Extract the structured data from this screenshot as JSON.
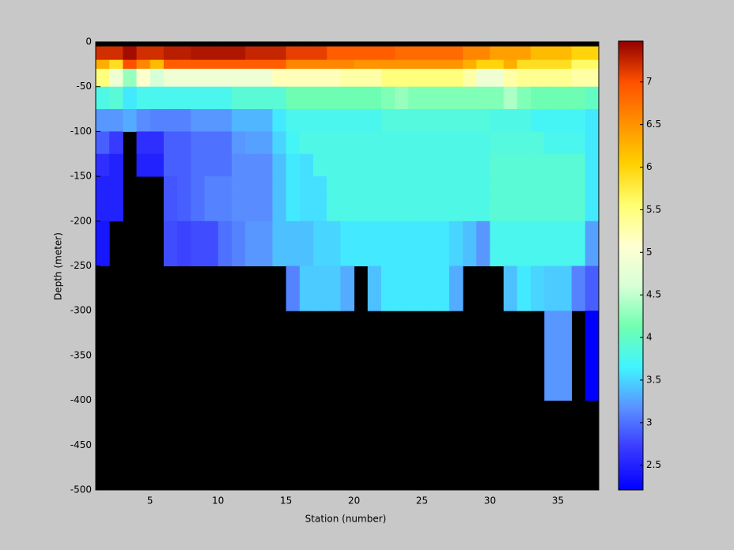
{
  "chart_data": {
    "type": "heatmap",
    "xlabel": "Station (number)",
    "ylabel": "Depth (meter)",
    "x_edges": [
      1,
      2,
      3,
      4,
      5,
      6,
      7,
      8,
      9,
      10,
      11,
      12,
      13,
      14,
      15,
      16,
      17,
      18,
      19,
      20,
      21,
      22,
      23,
      24,
      25,
      26,
      27,
      28,
      29,
      30,
      31,
      32,
      33,
      34,
      35,
      36,
      37,
      38
    ],
    "y_edges": [
      0,
      -5,
      -20,
      -30,
      -50,
      -75,
      -100,
      -125,
      -150,
      -175,
      -200,
      -225,
      -250,
      -300,
      -400,
      -500
    ],
    "xlim": [
      1,
      38
    ],
    "xticks": [
      5,
      10,
      15,
      20,
      25,
      30,
      35
    ],
    "ylim": [
      -500,
      0
    ],
    "yticks": [
      0,
      -50,
      -100,
      -150,
      -200,
      -250,
      -300,
      -350,
      -400,
      -450,
      -500
    ],
    "clim": [
      2.21,
      7.48
    ],
    "cticks": [
      2.5,
      3,
      3.5,
      4,
      4.5,
      5,
      5.5,
      6,
      6.5,
      7
    ],
    "colormap": [
      "#0000ff",
      "#3838ff",
      "#5a90ff",
      "#40f4ff",
      "#70ffb0",
      "#d8ffd8",
      "#ffffd0",
      "#ffff70",
      "#ffd000",
      "#ff9000",
      "#ff5000",
      "#900000"
    ],
    "missing_color": "#000000",
    "values": [
      [
        null,
        null,
        null,
        null,
        null,
        null,
        null,
        null,
        null,
        null,
        null,
        null,
        null,
        null,
        null,
        null,
        null,
        null,
        null,
        null,
        null,
        null,
        null,
        null,
        null,
        null,
        null,
        null,
        null,
        null,
        null,
        null,
        null,
        null,
        null,
        null,
        null
      ],
      [
        7.2,
        7.2,
        7.4,
        7.2,
        7.2,
        7.3,
        7.3,
        7.35,
        7.35,
        7.35,
        7.35,
        7.25,
        7.25,
        7.25,
        7.1,
        7.1,
        7.1,
        6.9,
        6.9,
        6.9,
        6.9,
        6.9,
        6.8,
        6.8,
        6.8,
        6.8,
        6.8,
        6.6,
        6.6,
        6.4,
        6.4,
        6.4,
        6.2,
        6.2,
        6.2,
        6.0,
        6.0
      ],
      [
        6.3,
        5.9,
        7.0,
        6.6,
        6.2,
        6.9,
        6.9,
        6.9,
        6.9,
        6.9,
        6.9,
        6.9,
        6.9,
        6.9,
        6.6,
        6.6,
        6.6,
        6.6,
        6.6,
        6.5,
        6.5,
        6.5,
        6.5,
        6.5,
        6.5,
        6.5,
        6.5,
        6.3,
        6.0,
        6.0,
        6.3,
        5.9,
        5.9,
        5.9,
        5.9,
        5.6,
        5.6
      ],
      [
        5.5,
        4.9,
        4.3,
        5.1,
        4.6,
        4.9,
        4.9,
        4.9,
        4.9,
        4.9,
        4.9,
        4.9,
        4.9,
        5.2,
        5.2,
        5.2,
        5.2,
        5.2,
        5.3,
        5.3,
        5.3,
        5.5,
        5.5,
        5.5,
        5.5,
        5.5,
        5.5,
        5.3,
        4.9,
        4.9,
        5.3,
        5.4,
        5.4,
        5.4,
        5.4,
        5.3,
        5.3
      ],
      [
        3.8,
        3.9,
        3.6,
        3.75,
        3.75,
        3.75,
        3.75,
        3.75,
        3.75,
        3.75,
        3.9,
        3.9,
        3.9,
        3.9,
        4.1,
        4.1,
        4.1,
        4.1,
        4.1,
        4.1,
        4.1,
        4.2,
        4.3,
        4.2,
        4.2,
        4.2,
        4.2,
        4.2,
        4.2,
        4.2,
        4.4,
        4.2,
        4.1,
        4.1,
        4.1,
        4.1,
        4.0
      ],
      [
        3.2,
        3.2,
        3.3,
        3.15,
        3.1,
        3.1,
        3.1,
        3.2,
        3.2,
        3.2,
        3.35,
        3.35,
        3.35,
        3.6,
        3.75,
        3.75,
        3.75,
        3.75,
        3.75,
        3.75,
        3.75,
        3.85,
        3.85,
        3.85,
        3.85,
        3.85,
        3.85,
        3.85,
        3.85,
        3.8,
        3.8,
        3.8,
        3.7,
        3.7,
        3.7,
        3.7,
        3.6
      ],
      [
        2.9,
        2.7,
        null,
        2.6,
        2.6,
        2.9,
        2.9,
        3.0,
        3.0,
        3.0,
        3.2,
        3.25,
        3.25,
        3.5,
        3.7,
        3.8,
        3.8,
        3.8,
        3.8,
        3.8,
        3.8,
        3.8,
        3.8,
        3.8,
        3.8,
        3.8,
        3.8,
        3.8,
        3.8,
        3.85,
        3.85,
        3.85,
        3.85,
        3.75,
        3.75,
        3.75,
        3.6
      ],
      [
        2.6,
        2.5,
        null,
        2.5,
        2.5,
        2.9,
        2.9,
        3.0,
        3.0,
        3.0,
        3.15,
        3.15,
        3.15,
        3.4,
        3.6,
        3.55,
        3.8,
        3.8,
        3.8,
        3.8,
        3.8,
        3.8,
        3.8,
        3.8,
        3.8,
        3.8,
        3.8,
        3.8,
        3.8,
        3.9,
        3.9,
        3.9,
        3.9,
        3.9,
        3.9,
        3.9,
        3.6
      ],
      [
        2.5,
        2.5,
        null,
        null,
        null,
        2.85,
        2.9,
        3.0,
        3.1,
        3.1,
        3.15,
        3.15,
        3.15,
        3.4,
        3.6,
        3.55,
        3.55,
        3.8,
        3.8,
        3.8,
        3.8,
        3.8,
        3.8,
        3.8,
        3.8,
        3.8,
        3.8,
        3.8,
        3.8,
        3.9,
        3.9,
        3.9,
        3.9,
        3.9,
        3.9,
        3.9,
        3.6
      ],
      [
        2.5,
        2.5,
        null,
        null,
        null,
        2.85,
        2.9,
        3.0,
        3.1,
        3.1,
        3.15,
        3.15,
        3.15,
        3.4,
        3.6,
        3.55,
        3.55,
        3.8,
        3.8,
        3.8,
        3.8,
        3.8,
        3.8,
        3.8,
        3.8,
        3.8,
        3.8,
        3.8,
        3.8,
        3.9,
        3.9,
        3.9,
        3.9,
        3.9,
        3.9,
        3.9,
        3.6
      ],
      [
        2.4,
        null,
        null,
        null,
        null,
        2.8,
        2.75,
        2.8,
        2.8,
        3.0,
        3.1,
        3.2,
        3.2,
        3.4,
        3.4,
        3.4,
        3.5,
        3.5,
        3.6,
        3.6,
        3.6,
        3.6,
        3.6,
        3.6,
        3.6,
        3.6,
        3.5,
        3.4,
        3.2,
        3.75,
        3.75,
        3.75,
        3.75,
        3.75,
        3.75,
        3.75,
        3.25
      ],
      [
        2.4,
        null,
        null,
        null,
        null,
        2.8,
        2.75,
        2.8,
        2.8,
        3.0,
        3.1,
        3.2,
        3.2,
        3.4,
        3.4,
        3.4,
        3.5,
        3.5,
        3.6,
        3.6,
        3.6,
        3.6,
        3.6,
        3.6,
        3.6,
        3.6,
        3.5,
        3.4,
        3.2,
        3.75,
        3.75,
        3.75,
        3.75,
        3.75,
        3.75,
        3.75,
        3.25
      ],
      [
        null,
        null,
        null,
        null,
        null,
        null,
        null,
        null,
        null,
        null,
        null,
        null,
        null,
        null,
        3.1,
        3.45,
        3.45,
        3.45,
        3.3,
        null,
        3.4,
        3.6,
        3.6,
        3.6,
        3.6,
        3.6,
        3.3,
        null,
        null,
        null,
        3.4,
        3.6,
        3.5,
        3.45,
        3.45,
        3.1,
        2.9
      ],
      [
        null,
        null,
        null,
        null,
        null,
        null,
        null,
        null,
        null,
        null,
        null,
        null,
        null,
        null,
        null,
        null,
        null,
        null,
        null,
        null,
        null,
        null,
        null,
        null,
        null,
        null,
        null,
        null,
        null,
        null,
        null,
        null,
        null,
        3.2,
        3.2,
        null,
        2.21
      ],
      [
        null,
        null,
        null,
        null,
        null,
        null,
        null,
        null,
        null,
        null,
        null,
        null,
        null,
        null,
        null,
        null,
        null,
        null,
        null,
        null,
        null,
        null,
        null,
        null,
        null,
        null,
        null,
        null,
        null,
        null,
        null,
        null,
        null,
        null,
        null,
        null,
        null
      ]
    ]
  }
}
